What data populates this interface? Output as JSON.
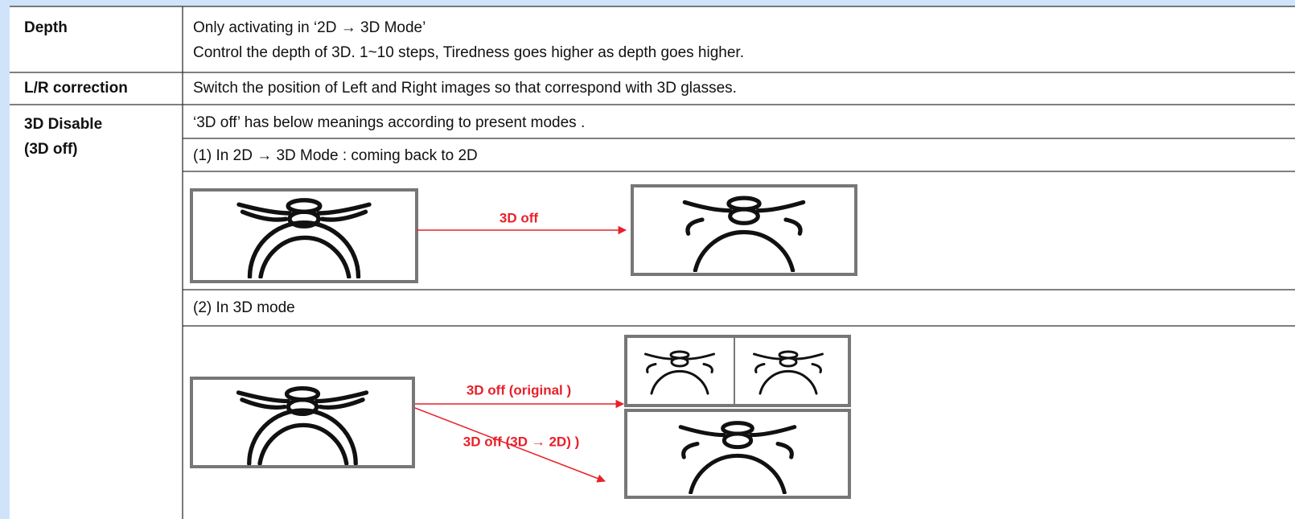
{
  "table": {
    "rows": [
      {
        "label": "Depth",
        "description": [
          "Only activating in ‘2D → 3D Mode’",
          "Control the depth of 3D.  1~10 steps,  Tiredness goes higher as depth goes higher."
        ]
      },
      {
        "label": "L/R correction",
        "description": [
          "Switch the position of Left and Right images so that correspond with 3D glasses."
        ]
      },
      {
        "label": [
          "3D Disable",
          "(3D off)"
        ],
        "description": [
          "‘3D off’ has below meanings according to present modes ."
        ],
        "cases": [
          {
            "title": "(1) In 2D → 3D  Mode  :   coming back to 2D",
            "arrows": [
              "3D off"
            ]
          },
          {
            "title": "(2) In 3D mode",
            "arrows": [
              "3D off (original )",
              "3D off (3D → 2D) )"
            ]
          }
        ]
      }
    ]
  }
}
